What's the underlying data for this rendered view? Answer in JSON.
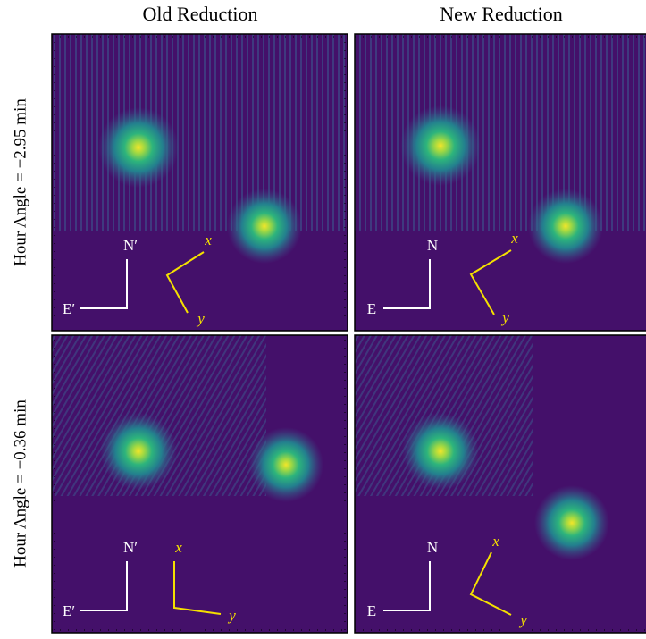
{
  "columns": [
    "Old Reduction",
    "New Reduction"
  ],
  "rows": [
    {
      "label": "Hour Angle = −2.95 min",
      "panels": [
        {
          "north": "N′",
          "east": "E′",
          "x": "x",
          "y": "y"
        },
        {
          "north": "N",
          "east": "E",
          "x": "x",
          "y": "y"
        }
      ]
    },
    {
      "label": "Hour Angle = −0.36 min",
      "panels": [
        {
          "north": "N′",
          "east": "E′",
          "x": "x",
          "y": "y"
        },
        {
          "north": "N",
          "east": "E",
          "x": "x",
          "y": "y"
        }
      ]
    }
  ]
}
